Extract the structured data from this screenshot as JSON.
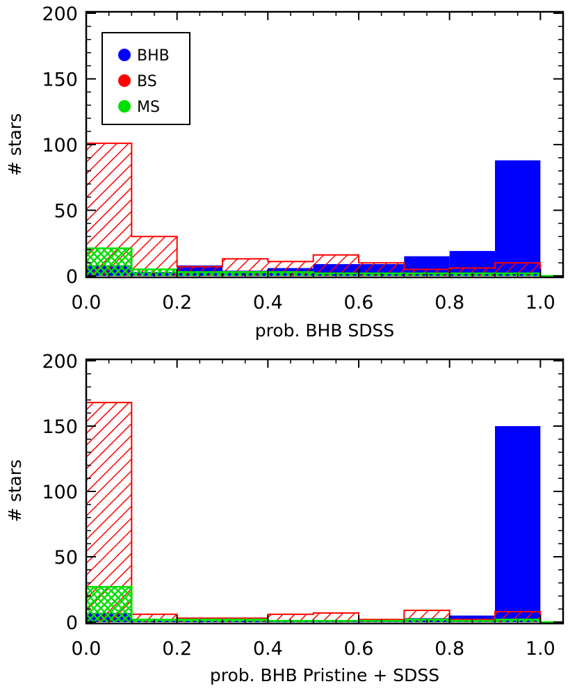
{
  "chart_data": [
    {
      "type": "bar",
      "xlabel": "prob. BHB SDSS",
      "ylabel": "# stars",
      "xlim": [
        0.0,
        1.05
      ],
      "ylim": [
        0,
        200
      ],
      "xticks": [
        "0.0",
        "0.2",
        "0.4",
        "0.6",
        "0.8",
        "1.0"
      ],
      "yticks": [
        "0",
        "50",
        "100",
        "150",
        "200"
      ],
      "bin_edges": [
        0.0,
        0.1,
        0.2,
        0.3,
        0.4,
        0.5,
        0.6,
        0.7,
        0.8,
        0.9,
        1.0
      ],
      "legend": {
        "position": "top-left",
        "entries": [
          "BHB",
          "BS",
          "MS"
        ]
      },
      "series": [
        {
          "name": "BHB",
          "color": "#0000ff",
          "fill": "solid",
          "values": [
            8,
            3,
            8,
            4,
            6,
            9,
            9,
            15,
            19,
            88
          ]
        },
        {
          "name": "BS",
          "color": "#ff0000",
          "fill": "hatched",
          "values": [
            101,
            30,
            7,
            13,
            11,
            16,
            10,
            5,
            6,
            10
          ]
        },
        {
          "name": "MS",
          "color": "#00e000",
          "fill": "cross-hatched",
          "values": [
            21,
            5,
            3,
            3,
            3,
            2,
            2,
            2,
            2,
            2
          ]
        }
      ]
    },
    {
      "type": "bar",
      "xlabel": "prob. BHB Pristine + SDSS",
      "ylabel": "# stars",
      "xlim": [
        0.0,
        1.05
      ],
      "ylim": [
        0,
        200
      ],
      "xticks": [
        "0.0",
        "0.2",
        "0.4",
        "0.6",
        "0.8",
        "1.0"
      ],
      "yticks": [
        "0",
        "50",
        "100",
        "150",
        "200"
      ],
      "bin_edges": [
        0.0,
        0.1,
        0.2,
        0.3,
        0.4,
        0.5,
        0.6,
        0.7,
        0.8,
        0.9,
        1.0
      ],
      "series": [
        {
          "name": "BHB",
          "color": "#0000ff",
          "fill": "solid",
          "values": [
            7,
            1,
            1,
            1,
            1,
            1,
            1,
            3,
            5,
            150
          ]
        },
        {
          "name": "BS",
          "color": "#ff0000",
          "fill": "hatched",
          "values": [
            168,
            6,
            3,
            3,
            6,
            7,
            2,
            9,
            2,
            8
          ]
        },
        {
          "name": "MS",
          "color": "#00e000",
          "fill": "cross-hatched",
          "values": [
            27,
            2,
            2,
            2,
            1,
            1,
            1,
            2,
            1,
            2
          ]
        }
      ]
    }
  ]
}
